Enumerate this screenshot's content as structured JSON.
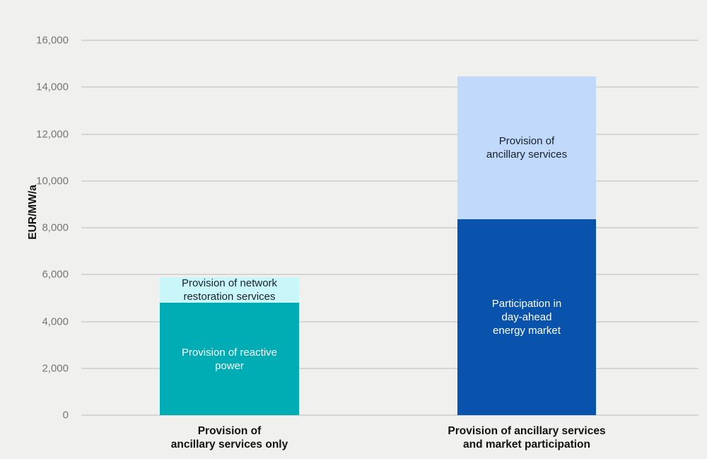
{
  "colors": {
    "background": "#f0f0ef",
    "gridline": "#d5d5d4",
    "tick_text": "#767675",
    "axis_text": "#121212",
    "teal": "#00adb4",
    "light_cyan": "#c9f7f9",
    "dark_blue": "#0953ad",
    "light_blue": "#c1d9fa",
    "label_on_dark": "#ffffff",
    "label_on_light": "#17202a"
  },
  "chart_data": {
    "type": "bar",
    "stacked": true,
    "title": "",
    "xlabel": "",
    "ylabel": "EUR/MW/a",
    "ylim": [
      0,
      16000
    ],
    "yticks": [
      0,
      2000,
      4000,
      6000,
      8000,
      10000,
      12000,
      14000,
      16000
    ],
    "ytick_labels": [
      "0",
      "2,000",
      "4,000",
      "6,000",
      "8,000",
      "10,000",
      "12,000",
      "14,000",
      "16,000"
    ],
    "grid": true,
    "legend": "none",
    "bars": [
      {
        "category": "Provision of\nancillary services only",
        "total": 5900,
        "segments": [
          {
            "label": "Provision of reactive\npower",
            "value": 4800,
            "color": "#00adb4",
            "text_color": "#ffffff"
          },
          {
            "label": "Provision of network\nrestoration services",
            "value": 1100,
            "color": "#c9f7f9",
            "text_color": "#17202a"
          }
        ]
      },
      {
        "category": "Provision of ancillary services\nand market participation",
        "total": 14450,
        "segments": [
          {
            "label": "Participation in\nday-ahead\nenergy market",
            "value": 8350,
            "color": "#0953ad",
            "text_color": "#ffffff"
          },
          {
            "label": "Provision of\nancillary services",
            "value": 6100,
            "color": "#c1d9fa",
            "text_color": "#17202a"
          }
        ]
      }
    ]
  }
}
